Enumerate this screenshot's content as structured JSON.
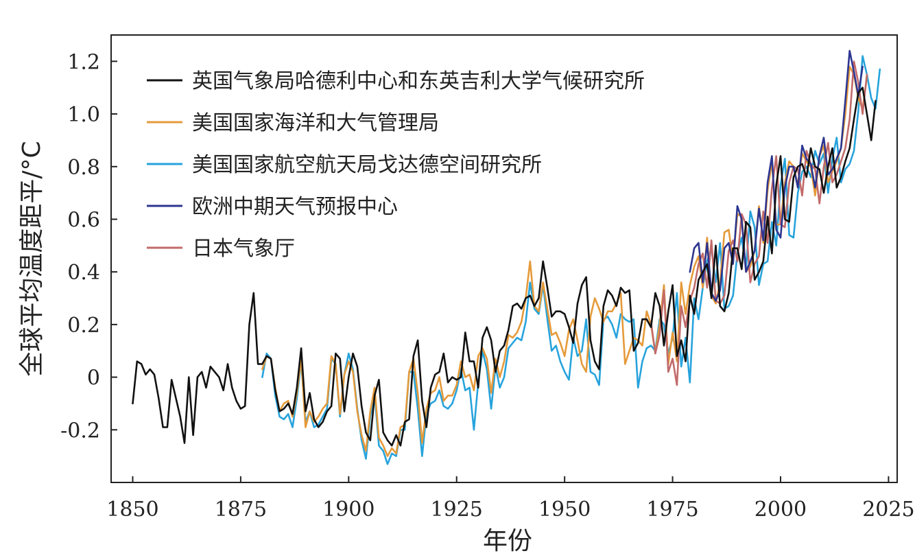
{
  "chart_data": {
    "type": "line",
    "xlabel": "年份",
    "ylabel": "全球平均温度距平/°C",
    "xlim": [
      1845,
      2027
    ],
    "ylim": [
      -0.4,
      1.3
    ],
    "xticks": [
      1850,
      1875,
      1900,
      1925,
      1950,
      1975,
      2000,
      2025
    ],
    "yticks": [
      -0.2,
      0,
      0.2,
      0.4,
      0.6,
      0.8,
      1.0,
      1.2
    ],
    "ytick_labels": [
      "-0.2",
      "0",
      "0.2",
      "0.4",
      "0.6",
      "0.8",
      "1.0",
      "1.2"
    ],
    "grid": false,
    "legend_position": "top-left",
    "series": [
      {
        "name": "英国气象局哈德利中心和东英吉利大学气候研究所",
        "color": "#111111",
        "x_start": 1850,
        "values": [
          -0.1,
          0.06,
          0.05,
          0.01,
          0.03,
          0.01,
          -0.08,
          -0.19,
          -0.19,
          -0.01,
          -0.08,
          -0.15,
          -0.25,
          0.0,
          -0.22,
          0.0,
          0.02,
          -0.04,
          0.04,
          0.02,
          0.0,
          -0.05,
          0.05,
          -0.04,
          -0.09,
          -0.12,
          -0.11,
          0.2,
          0.32,
          0.05,
          0.05,
          0.08,
          0.07,
          -0.05,
          -0.13,
          -0.12,
          -0.1,
          -0.14,
          -0.04,
          0.11,
          -0.13,
          -0.06,
          -0.16,
          -0.19,
          -0.17,
          -0.13,
          -0.11,
          0.09,
          0.07,
          -0.13,
          0.0,
          0.09,
          0.04,
          -0.11,
          -0.21,
          -0.24,
          -0.07,
          -0.01,
          -0.21,
          -0.24,
          -0.26,
          -0.22,
          -0.26,
          -0.17,
          -0.16,
          0.08,
          0.14,
          -0.09,
          -0.19,
          -0.04,
          0.01,
          0.02,
          0.09,
          -0.02,
          0.0,
          -0.01,
          0.0,
          0.17,
          0.06,
          0.06,
          -0.04,
          0.15,
          0.19,
          0.14,
          0.02,
          0.1,
          0.12,
          0.18,
          0.27,
          0.28,
          0.26,
          0.3,
          0.31,
          0.27,
          0.3,
          0.44,
          0.34,
          0.23,
          0.25,
          0.25,
          0.24,
          0.19,
          0.13,
          0.28,
          0.35,
          0.38,
          0.14,
          0.06,
          0.03,
          0.27,
          0.33,
          0.31,
          0.27,
          0.34,
          0.32,
          0.33,
          0.1,
          0.13,
          0.22,
          0.22,
          0.19,
          0.32,
          0.27,
          0.12,
          0.25,
          0.35,
          0.08,
          0.14,
          0.06,
          0.31,
          0.24,
          0.37,
          0.4,
          0.43,
          0.3,
          0.5,
          0.27,
          0.25,
          0.32,
          0.49,
          0.49,
          0.41,
          0.59,
          0.57,
          0.37,
          0.4,
          0.44,
          0.61,
          0.47,
          0.73,
          0.84,
          0.6,
          0.59,
          0.76,
          0.8,
          0.81,
          0.76,
          0.87,
          0.8,
          0.79,
          0.7,
          0.8,
          0.87,
          0.72,
          0.76,
          0.82,
          0.87,
          0.98,
          1.08,
          1.1,
          1.0,
          0.9,
          1.05
        ]
      },
      {
        "name": "美国国家海洋和大气管理局",
        "color": "#e59a3a",
        "x_start": 1880,
        "values": [
          0.03,
          0.08,
          0.07,
          -0.04,
          -0.13,
          -0.1,
          -0.09,
          -0.15,
          -0.06,
          0.07,
          -0.19,
          -0.13,
          -0.17,
          -0.15,
          -0.12,
          -0.1,
          0.08,
          0.05,
          -0.14,
          0.01,
          0.06,
          0.02,
          -0.13,
          -0.22,
          -0.28,
          -0.13,
          -0.04,
          -0.23,
          -0.26,
          -0.3,
          -0.27,
          -0.29,
          -0.19,
          -0.18,
          0.02,
          0.07,
          -0.06,
          -0.25,
          -0.12,
          -0.06,
          -0.05,
          0.0,
          -0.09,
          -0.07,
          -0.07,
          -0.03,
          0.06,
          0.0,
          0.01,
          -0.05,
          0.08,
          0.11,
          0.07,
          -0.06,
          0.07,
          0.0,
          0.06,
          0.16,
          0.15,
          0.17,
          0.21,
          0.3,
          0.44,
          0.27,
          0.25,
          0.36,
          0.26,
          0.16,
          0.17,
          0.13,
          0.08,
          0.18,
          0.22,
          0.14,
          0.05,
          0.02,
          0.23,
          0.3,
          0.26,
          0.21,
          0.25,
          0.25,
          0.28,
          0.32,
          0.05,
          0.1,
          0.15,
          0.14,
          0.12,
          0.25,
          0.2,
          0.09,
          0.2,
          0.35,
          0.05,
          0.17,
          0.06,
          0.36,
          0.24,
          0.35,
          0.42,
          0.46,
          0.34,
          0.53,
          0.31,
          0.28,
          0.36,
          0.55,
          0.56,
          0.44,
          0.62,
          0.61,
          0.4,
          0.42,
          0.48,
          0.65,
          0.51,
          0.71,
          0.82,
          0.58,
          0.58,
          0.74,
          0.82,
          0.8,
          0.73,
          0.85,
          0.82,
          0.8,
          0.69,
          0.84,
          0.88,
          0.74,
          0.78,
          0.82,
          0.87,
          1.0,
          1.18,
          1.15,
          1.06,
          1.02,
          1.14
        ]
      },
      {
        "name": "美国国家航空航天局戈达德空间研究所",
        "color": "#27a3dc",
        "x_start": 1880,
        "values": [
          0.0,
          0.09,
          0.07,
          -0.07,
          -0.15,
          -0.16,
          -0.14,
          -0.19,
          -0.08,
          0.06,
          -0.17,
          -0.13,
          -0.19,
          -0.18,
          -0.15,
          -0.12,
          0.07,
          0.05,
          -0.15,
          0.01,
          0.09,
          0.03,
          -0.12,
          -0.24,
          -0.31,
          -0.15,
          -0.06,
          -0.26,
          -0.28,
          -0.33,
          -0.29,
          -0.3,
          -0.2,
          -0.2,
          0.02,
          0.02,
          -0.12,
          -0.3,
          -0.14,
          -0.1,
          -0.09,
          -0.05,
          -0.11,
          -0.12,
          -0.1,
          -0.05,
          0.03,
          -0.05,
          -0.04,
          -0.2,
          -0.02,
          0.1,
          0.03,
          -0.12,
          0.04,
          -0.04,
          0.0,
          0.11,
          0.13,
          0.15,
          0.14,
          0.21,
          0.36,
          0.26,
          0.24,
          0.35,
          0.22,
          0.1,
          0.12,
          0.06,
          0.02,
          -0.01,
          0.15,
          0.08,
          0.1,
          0.22,
          0.02,
          0.01,
          -0.03,
          0.22,
          0.23,
          0.2,
          0.15,
          0.24,
          0.22,
          0.21,
          0.22,
          -0.04,
          0.06,
          0.11,
          0.12,
          0.1,
          0.22,
          0.2,
          0.09,
          0.15,
          0.32,
          0.04,
          0.15,
          -0.02,
          0.3,
          0.22,
          0.34,
          0.44,
          0.49,
          0.36,
          0.51,
          0.26,
          0.27,
          0.31,
          0.47,
          0.53,
          0.41,
          0.63,
          0.57,
          0.35,
          0.43,
          0.44,
          0.59,
          0.5,
          0.73,
          0.83,
          0.54,
          0.53,
          0.7,
          0.78,
          0.8,
          0.76,
          0.86,
          0.81,
          0.85,
          0.7,
          0.83,
          0.91,
          0.74,
          0.79,
          0.81,
          0.86,
          1.01,
          1.22,
          1.15,
          1.06,
          1.02,
          1.17
        ]
      },
      {
        "name": "欧洲中期天气预报中心",
        "color": "#2c3590",
        "x_start": 1979,
        "values": [
          0.4,
          0.49,
          0.51,
          0.36,
          0.51,
          0.32,
          0.29,
          0.33,
          0.49,
          0.51,
          0.43,
          0.65,
          0.6,
          0.4,
          0.44,
          0.48,
          0.64,
          0.52,
          0.74,
          0.84,
          0.56,
          0.53,
          0.72,
          0.8,
          0.8,
          0.72,
          0.88,
          0.83,
          0.81,
          0.72,
          0.84,
          0.91,
          0.77,
          0.79,
          0.83,
          0.87,
          1.05,
          1.24,
          1.16,
          1.07,
          1.18
        ]
      },
      {
        "name": "日本气象厅",
        "color": "#c26a6a",
        "x_start": 1970,
        "values": [
          0.21,
          0.09,
          0.16,
          0.33,
          0.02,
          0.07,
          -0.03,
          0.27,
          0.19,
          0.29,
          0.34,
          0.43,
          0.47,
          0.34,
          0.52,
          0.29,
          0.28,
          0.31,
          0.48,
          0.52,
          0.44,
          0.62,
          0.58,
          0.36,
          0.43,
          0.46,
          0.63,
          0.51,
          0.72,
          0.84,
          0.58,
          0.57,
          0.74,
          0.8,
          0.79,
          0.69,
          0.86,
          0.81,
          0.79,
          0.66,
          0.8,
          0.89,
          0.74,
          0.77,
          0.82,
          0.87,
          0.98,
          1.2,
          1.12,
          1.0,
          1.15
        ]
      }
    ]
  }
}
